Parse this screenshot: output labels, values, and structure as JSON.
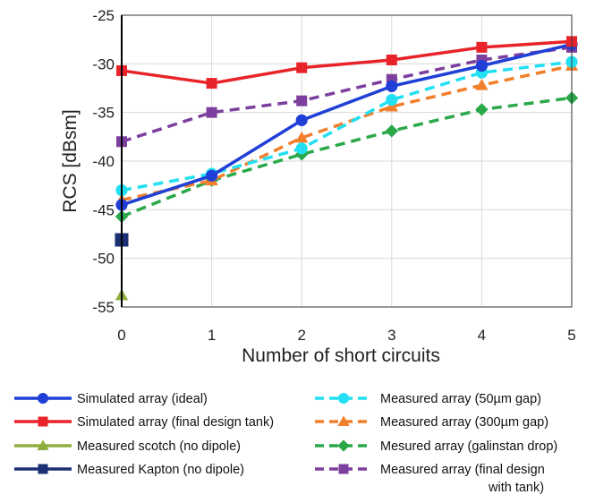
{
  "chart_data": {
    "type": "line",
    "title": "",
    "xlabel": "Number of short circuits",
    "ylabel": "RCS [dBsm]",
    "x": [
      0,
      1,
      2,
      3,
      4,
      5
    ],
    "xlim": [
      0,
      5
    ],
    "ylim": [
      -55,
      -25
    ],
    "xticks": [
      "0",
      "1",
      "2",
      "3",
      "4",
      "5"
    ],
    "yticks": [
      "-25",
      "-30",
      "-35",
      "-40",
      "-45",
      "-50",
      "-55"
    ],
    "grid": true,
    "legend_position": "below",
    "series": [
      {
        "name": "Simulated array  (ideal)",
        "color": "#1f3fd6",
        "dashed": false,
        "marker": "circle",
        "x": [
          0,
          1,
          2,
          3,
          4,
          5
        ],
        "values": [
          -44.5,
          -41.5,
          -35.8,
          -32.3,
          -30.2,
          -28.0
        ]
      },
      {
        "name": "Simulated array  (final design tank)",
        "color": "#e8242a",
        "dashed": false,
        "marker": "square",
        "x": [
          0,
          1,
          2,
          3,
          4,
          5
        ],
        "values": [
          -30.7,
          -32.0,
          -30.4,
          -29.6,
          -28.3,
          -27.7
        ]
      },
      {
        "name": "Measured scotch  (no dipole)",
        "color": "#8fae3e",
        "dashed": false,
        "marker": "triangle",
        "x": [
          0
        ],
        "values": [
          -53.8
        ]
      },
      {
        "name": "Measured Kapton  (no dipole)",
        "color": "#1b2f73",
        "dashed": false,
        "marker": "square",
        "x": [
          0
        ],
        "values": [
          -48.1
        ]
      },
      {
        "name": "Measured array  (50µm gap)",
        "color": "#22e0f2",
        "dashed": true,
        "marker": "circle",
        "x": [
          0,
          1,
          2,
          3,
          4,
          5
        ],
        "values": [
          -43.0,
          -41.3,
          -38.7,
          -33.7,
          -30.9,
          -29.8
        ]
      },
      {
        "name": "Measured array  (300µm gap)",
        "color": "#f27f2c",
        "dashed": true,
        "marker": "triangle",
        "x": [
          0,
          1,
          2,
          3,
          4,
          5
        ],
        "values": [
          -44.0,
          -42.0,
          -37.6,
          -34.4,
          -32.2,
          -30.2
        ]
      },
      {
        "name": "Mesured array  (galinstan drop)",
        "color": "#2aa84a",
        "dashed": true,
        "marker": "diamond",
        "x": [
          0,
          1,
          2,
          3,
          4,
          5
        ],
        "values": [
          -45.7,
          -42.0,
          -39.3,
          -36.9,
          -34.7,
          -33.5
        ]
      },
      {
        "name": "Measured array  (final design",
        "name_line2": "with tank)",
        "color": "#7d3f9e",
        "dashed": true,
        "marker": "square",
        "x": [
          0,
          1,
          2,
          3,
          4,
          5
        ],
        "values": [
          -38.0,
          -35.0,
          -33.8,
          -31.6,
          -29.6,
          -28.3
        ]
      }
    ]
  }
}
